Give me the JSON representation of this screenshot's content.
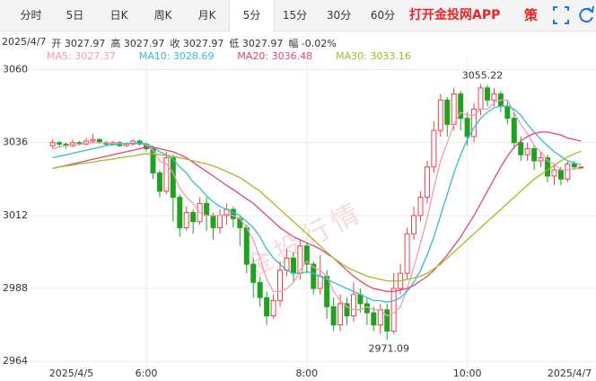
{
  "toolbar": {
    "tabs": [
      "分时",
      "5日",
      "日K",
      "周K",
      "月K",
      "5分",
      "15分",
      "30分",
      "60分"
    ],
    "active_tab": 5,
    "app_link": "打开金投网APP",
    "strategy": "策"
  },
  "info": [
    "2025/4/7",
    "开 3027.97",
    "高 3027.97",
    "收 3027.97",
    "低 3027.97",
    "幅 -0.02%"
  ],
  "chart_data": {
    "type": "candlestick",
    "watermark": "金投行情",
    "categories": [
      "2025/4/5",
      null,
      null,
      null,
      null,
      null,
      null,
      null,
      null,
      null,
      null,
      null,
      null,
      null,
      "6:00",
      null,
      null,
      null,
      null,
      null,
      null,
      null,
      null,
      null,
      null,
      null,
      null,
      null,
      null,
      null,
      null,
      null,
      null,
      null,
      null,
      null,
      null,
      null,
      "8:00",
      null,
      null,
      null,
      null,
      null,
      null,
      null,
      null,
      null,
      null,
      null,
      null,
      null,
      null,
      null,
      null,
      null,
      null,
      null,
      null,
      null,
      null,
      null,
      "10:00",
      null,
      null,
      null,
      null,
      null,
      null,
      null,
      null,
      null,
      null,
      null,
      null,
      null,
      null,
      null,
      null,
      "2025/4/7"
    ],
    "open": [
      3035,
      3036,
      3035.5,
      3035,
      3036,
      3035.5,
      3036.5,
      3037,
      3036,
      3035.5,
      3036,
      3035,
      3035.5,
      3036.5,
      3035.5,
      3034,
      3026,
      3020,
      3031,
      3018,
      3008,
      3013,
      3010,
      3016,
      3012,
      3008,
      3012,
      3014,
      3011,
      3008,
      2996,
      2990,
      2985,
      2979,
      2984,
      2994,
      2998,
      2993,
      3002,
      2996,
      2988,
      2992,
      2982,
      2976,
      2983,
      2979,
      2986,
      2983,
      2980,
      2976,
      2981,
      2974,
      2988,
      2993,
      3006,
      3012,
      3018,
      3028,
      3040,
      3050,
      3042,
      3052,
      3044,
      3038,
      3047,
      3054,
      3050,
      3052,
      3048,
      3044,
      3036,
      3032,
      3034,
      3030,
      3031,
      3025,
      3027,
      3024,
      3029,
      3027.97
    ],
    "high": [
      3037,
      3036.5,
      3036,
      3037,
      3036.5,
      3037.5,
      3039,
      3037.5,
      3036.5,
      3036.5,
      3036.5,
      3036,
      3037,
      3037,
      3036,
      3035,
      3027,
      3033,
      3032,
      3019,
      3015,
      3014,
      3018,
      3018,
      3013,
      3014,
      3016,
      3015,
      3012,
      3009,
      2998,
      2992,
      2987,
      2986,
      2997,
      3001,
      3000,
      3004,
      3003,
      2997,
      2999,
      2994,
      2985,
      2986,
      2985,
      2990,
      2988,
      2985,
      2982,
      2983,
      2983,
      2993,
      2996,
      3008,
      3015,
      3020,
      3030,
      3043,
      3052,
      3051,
      3054,
      3053,
      3046,
      3049,
      3055.22,
      3055,
      3054,
      3053,
      3050,
      3046,
      3038,
      3036,
      3035,
      3033,
      3032,
      3029,
      3028,
      3030,
      3030,
      3027.97
    ],
    "low": [
      3034,
      3034.5,
      3034,
      3034.5,
      3035,
      3035,
      3036,
      3035.5,
      3035,
      3035,
      3034.5,
      3034.5,
      3035,
      3035,
      3033,
      3024,
      3018,
      3019,
      3010,
      3005,
      3007,
      3006,
      3009,
      3007,
      3004,
      3006,
      3009,
      3008,
      3002,
      2993,
      2985,
      2982,
      2976,
      2978,
      2982,
      2992,
      2990,
      2991,
      2993,
      2986,
      2986,
      2978,
      2974,
      2974,
      2976,
      2977,
      2980,
      2976,
      2974,
      2973,
      2971.09,
      2973,
      2986,
      2991,
      3004,
      3010,
      3016,
      3026,
      3038,
      3038,
      3040,
      3040,
      3035,
      3036,
      3045,
      3048,
      3048,
      3046,
      3042,
      3034,
      3030,
      3030,
      3027,
      3028,
      3023,
      3022,
      3022,
      3023,
      3027,
      3027.97
    ],
    "close": [
      3036,
      3035.5,
      3035,
      3036,
      3035.5,
      3036.5,
      3037,
      3036,
      3035.5,
      3036,
      3035,
      3035.5,
      3036.5,
      3035.5,
      3034,
      3026,
      3020,
      3031,
      3018,
      3008,
      3013,
      3010,
      3016,
      3012,
      3008,
      3012,
      3014,
      3011,
      3008,
      2996,
      2990,
      2985,
      2979,
      2984,
      2994,
      2998,
      2993,
      3002,
      2996,
      2988,
      2992,
      2982,
      2976,
      2983,
      2979,
      2986,
      2983,
      2980,
      2976,
      2981,
      2974,
      2988,
      2993,
      3006,
      3012,
      3018,
      3028,
      3040,
      3050,
      3042,
      3052,
      3044,
      3038,
      3047,
      3054,
      3050,
      3052,
      3048,
      3044,
      3036,
      3032,
      3034,
      3030,
      3031,
      3025,
      3027,
      3024,
      3029,
      3028,
      3027.97
    ],
    "up_color": "#e8434a",
    "down_color": "#22a022",
    "series": [
      {
        "name": "MA5: 3027.37",
        "color": "#f29bb5",
        "values": [
          3034,
          3034.5,
          3035,
          3035.3,
          3035.5,
          3035.7,
          3036,
          3036,
          3035.9,
          3035.8,
          3035.7,
          3035.6,
          3035.7,
          3035.7,
          3035.3,
          3033.5,
          3030,
          3029,
          3026,
          3021,
          3018,
          3016,
          3013,
          3012,
          3012,
          3012,
          3012.5,
          3012,
          3011,
          3008,
          3004,
          2998,
          2991,
          2987,
          2987,
          2988,
          2990,
          2994,
          2997,
          2995,
          2994,
          2992,
          2987,
          2984,
          2982,
          2981,
          2981,
          2982,
          2981,
          2981,
          2979,
          2980,
          2982,
          2988,
          2995,
          3003,
          3011,
          3021,
          3030,
          3036,
          3042,
          3046,
          3045,
          3045,
          3047,
          3047,
          3049,
          3050,
          3050,
          3046,
          3042,
          3039,
          3035,
          3033,
          3030,
          3029,
          3027,
          3027,
          3027.5,
          3027.37
        ]
      },
      {
        "name": "MA10: 3028.69",
        "color": "#33bcd4",
        "values": [
          3031,
          3031.5,
          3032,
          3032.5,
          3033,
          3033.5,
          3034,
          3034.5,
          3035,
          3035.3,
          3035.5,
          3035.7,
          3035.8,
          3035.8,
          3035.6,
          3034.5,
          3033,
          3032,
          3030.5,
          3028,
          3026,
          3023,
          3021,
          3018.5,
          3016.5,
          3015,
          3014,
          3013,
          3012,
          3010,
          3008,
          3005,
          3001,
          2998,
          2996,
          2994,
          2993,
          2993,
          2993.5,
          2993,
          2992,
          2991,
          2990,
          2989,
          2988,
          2987,
          2986,
          2985,
          2984,
          2984,
          2983.5,
          2984,
          2985,
          2987,
          2990,
          2994,
          2999,
          3005,
          3012,
          3019,
          3026,
          3032,
          3037,
          3041,
          3044,
          3046,
          3047.5,
          3048,
          3048,
          3047,
          3045,
          3042,
          3039.5,
          3037,
          3035,
          3033,
          3031.5,
          3030,
          3029.3,
          3028.69
        ]
      },
      {
        "name": "MA20: 3036.48",
        "color": "#e0457b",
        "values": [
          3027.5,
          3028,
          3028.5,
          3029,
          3029.5,
          3030,
          3030.5,
          3031,
          3031.5,
          3032,
          3032.5,
          3033,
          3033.5,
          3034,
          3034.5,
          3034.5,
          3034,
          3033.5,
          3033,
          3032,
          3031,
          3029.5,
          3028,
          3026.5,
          3025,
          3023.5,
          3022,
          3020.5,
          3019,
          3017.5,
          3016,
          3014,
          3012,
          3010,
          3008,
          3006.5,
          3005,
          3004,
          3003,
          3002,
          3001,
          2999.5,
          2998,
          2996,
          2994,
          2992,
          2990.5,
          2989,
          2988,
          2987.5,
          2987,
          2987,
          2987.5,
          2988,
          2989,
          2990.5,
          2992,
          2994,
          2996.5,
          2999,
          3002,
          3005,
          3008.5,
          3012,
          3016,
          3020,
          3024,
          3028,
          3031.5,
          3034.5,
          3036.5,
          3038,
          3039,
          3039.5,
          3039.5,
          3039,
          3038.5,
          3037.5,
          3037,
          3036.48
        ]
      },
      {
        "name": "MA30: 3033.16",
        "color": "#a3bb22",
        "values": [
          3027.5,
          3028,
          3028.3,
          3028.6,
          3029,
          3029.3,
          3029.6,
          3030,
          3030.3,
          3030.6,
          3031,
          3031.3,
          3031.6,
          3032,
          3032.3,
          3032.3,
          3032,
          3031.8,
          3031.5,
          3031,
          3030.5,
          3030,
          3029.5,
          3029,
          3028.3,
          3027.5,
          3026.5,
          3025.5,
          3024.5,
          3023,
          3021.5,
          3020,
          3018,
          3016,
          3014,
          3012,
          3010,
          3008,
          3006,
          3004,
          3002,
          3000,
          2998,
          2996.5,
          2995,
          2994,
          2993,
          2992,
          2991.5,
          2991,
          2990.5,
          2990.5,
          2990.5,
          2991,
          2991.5,
          2992,
          2993,
          2994.5,
          2996,
          2998,
          3000,
          3002,
          3004,
          3006,
          3008,
          3010,
          3012,
          3014,
          3016,
          3018,
          3020,
          3022,
          3024,
          3025.5,
          3027,
          3028.5,
          3030,
          3031.3,
          3032.3,
          3033.16
        ]
      }
    ],
    "annotations": [
      {
        "label": "3055.22",
        "index": 64,
        "position": "above"
      },
      {
        "label": "2971.09",
        "index": 50,
        "position": "below"
      }
    ],
    "ylim": [
      2962,
      3064
    ],
    "yticks": [
      2964,
      2988,
      3012,
      3036,
      3060
    ],
    "grid": true
  }
}
